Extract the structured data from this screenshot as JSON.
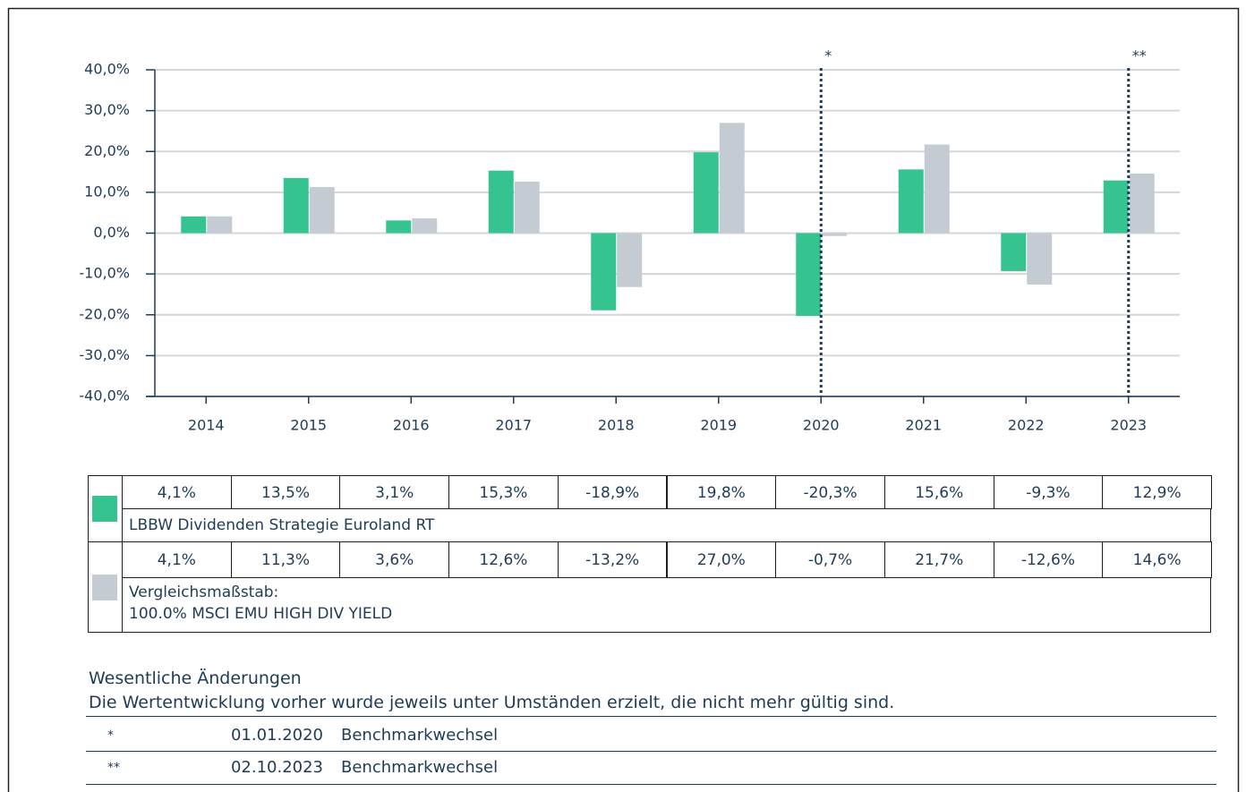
{
  "chart_data": {
    "type": "bar",
    "categories": [
      "2014",
      "2015",
      "2016",
      "2017",
      "2018",
      "2019",
      "2020",
      "2021",
      "2022",
      "2023"
    ],
    "series": [
      {
        "name": "LBBW Dividenden Strategie Euroland RT",
        "color": "#35c48f",
        "values": [
          4.1,
          13.5,
          3.1,
          15.3,
          -18.9,
          19.8,
          -20.3,
          15.6,
          -9.3,
          12.9
        ],
        "value_labels": [
          "4,1%",
          "13,5%",
          "3,1%",
          "15,3%",
          "-18,9%",
          "19,8%",
          "-20,3%",
          "15,6%",
          "-9,3%",
          "12,9%"
        ]
      },
      {
        "name": "Vergleichsmaßstab:\n100.0% MSCI EMU HIGH DIV YIELD",
        "color": "#c5cbd2",
        "values": [
          4.1,
          11.3,
          3.6,
          12.6,
          -13.2,
          27.0,
          -0.7,
          21.7,
          -12.6,
          14.6
        ],
        "value_labels": [
          "4,1%",
          "11,3%",
          "3,6%",
          "12,6%",
          "-13,2%",
          "27,0%",
          "-0,7%",
          "21,7%",
          "-12,6%",
          "14,6%"
        ]
      }
    ],
    "ylim": [
      -40,
      40
    ],
    "yticks": [
      {
        "value": -40,
        "label": "-40,0%"
      },
      {
        "value": -30,
        "label": "-30,0%"
      },
      {
        "value": -20,
        "label": "-20,0%"
      },
      {
        "value": -10,
        "label": "-10,0%"
      },
      {
        "value": 0,
        "label": "0,0%"
      },
      {
        "value": 10,
        "label": "10,0%"
      },
      {
        "value": 20,
        "label": "20,0%"
      },
      {
        "value": 30,
        "label": "30,0%"
      },
      {
        "value": 40,
        "label": "40,0%"
      }
    ],
    "grid": true,
    "annotations": [
      {
        "x": "2020",
        "label": "*"
      },
      {
        "x": "2023",
        "label": "**"
      }
    ]
  },
  "notes": {
    "title": "Wesentliche Änderungen",
    "subtitle": "Die Wertentwicklung vorher wurde jeweils unter Umständen erzielt, die nicht mehr gültig sind.",
    "rows": [
      {
        "mark": "*",
        "date": "01.01.2020",
        "text": "Benchmarkwechsel"
      },
      {
        "mark": "**",
        "date": "02.10.2023",
        "text": "Benchmarkwechsel"
      }
    ]
  }
}
